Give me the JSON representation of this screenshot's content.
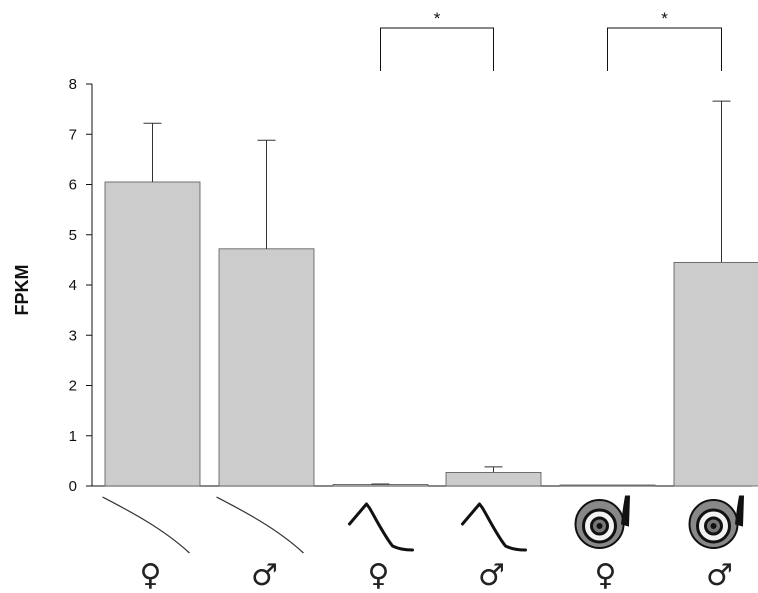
{
  "chart_data": {
    "type": "bar",
    "ylabel": "FPKM",
    "ylim": [
      0,
      8
    ],
    "yticks": [
      0,
      1,
      2,
      3,
      4,
      5,
      6,
      7,
      8
    ],
    "grid": false,
    "bar_color": "#cccccc",
    "categories": [
      {
        "sex": "♀",
        "icon": "straight-line-icon"
      },
      {
        "sex": "♂",
        "icon": "straight-line-icon"
      },
      {
        "sex": "♀",
        "icon": "peak-curve-icon"
      },
      {
        "sex": "♂",
        "icon": "peak-curve-icon"
      },
      {
        "sex": "♀",
        "icon": "spiral-shell-icon"
      },
      {
        "sex": "♂",
        "icon": "spiral-shell-icon"
      }
    ],
    "values": [
      6.05,
      4.72,
      0.03,
      0.27,
      0.01,
      4.45
    ],
    "error_upper": [
      7.22,
      6.88,
      0.04,
      0.38,
      0.02,
      7.66
    ],
    "significance": [
      {
        "from": 2,
        "to": 3,
        "label": "*"
      },
      {
        "from": 4,
        "to": 5,
        "label": "*"
      }
    ]
  }
}
